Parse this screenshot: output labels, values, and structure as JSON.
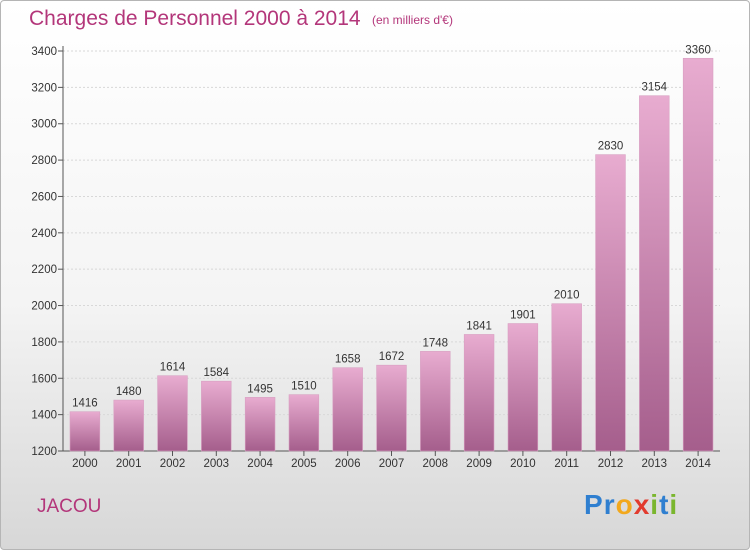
{
  "header": {
    "title": "Charges de Personnel 2000 à 2014",
    "subtitle": "(en milliers d'€)"
  },
  "commune": "JACOU",
  "logo": {
    "text": "Proxiti",
    "letters": [
      {
        "char": "P",
        "color": "#2f7fd0"
      },
      {
        "char": "r",
        "color": "#2f7fd0"
      },
      {
        "char": "o",
        "color": "#f2a81d"
      },
      {
        "char": "x",
        "color": "#e23b2e"
      },
      {
        "char": "i",
        "color": "#7ab62e"
      },
      {
        "char": "t",
        "color": "#2f7fd0"
      },
      {
        "char": "i",
        "color": "#7ab62e"
      }
    ]
  },
  "colors": {
    "title": "#b3367a",
    "bar_top": "#e8acd0",
    "bar_bottom": "#a55e8c",
    "axis": "#555555",
    "grid": "#d8d8d8"
  },
  "chart_data": {
    "type": "bar",
    "title": "Charges de Personnel 2000 à 2014",
    "subtitle": "(en milliers d'€)",
    "categories": [
      "2000",
      "2001",
      "2002",
      "2003",
      "2004",
      "2005",
      "2006",
      "2007",
      "2008",
      "2009",
      "2010",
      "2011",
      "2012",
      "2013",
      "2014"
    ],
    "values": [
      1416,
      1480,
      1614,
      1584,
      1495,
      1510,
      1658,
      1672,
      1748,
      1841,
      1901,
      2010,
      2830,
      3154,
      3360
    ],
    "ylim": [
      1200,
      3400
    ],
    "yticks": [
      1200,
      1400,
      1600,
      1800,
      2000,
      2200,
      2400,
      2600,
      2800,
      3000,
      3200,
      3400
    ],
    "grid": true,
    "data_labels": true
  }
}
